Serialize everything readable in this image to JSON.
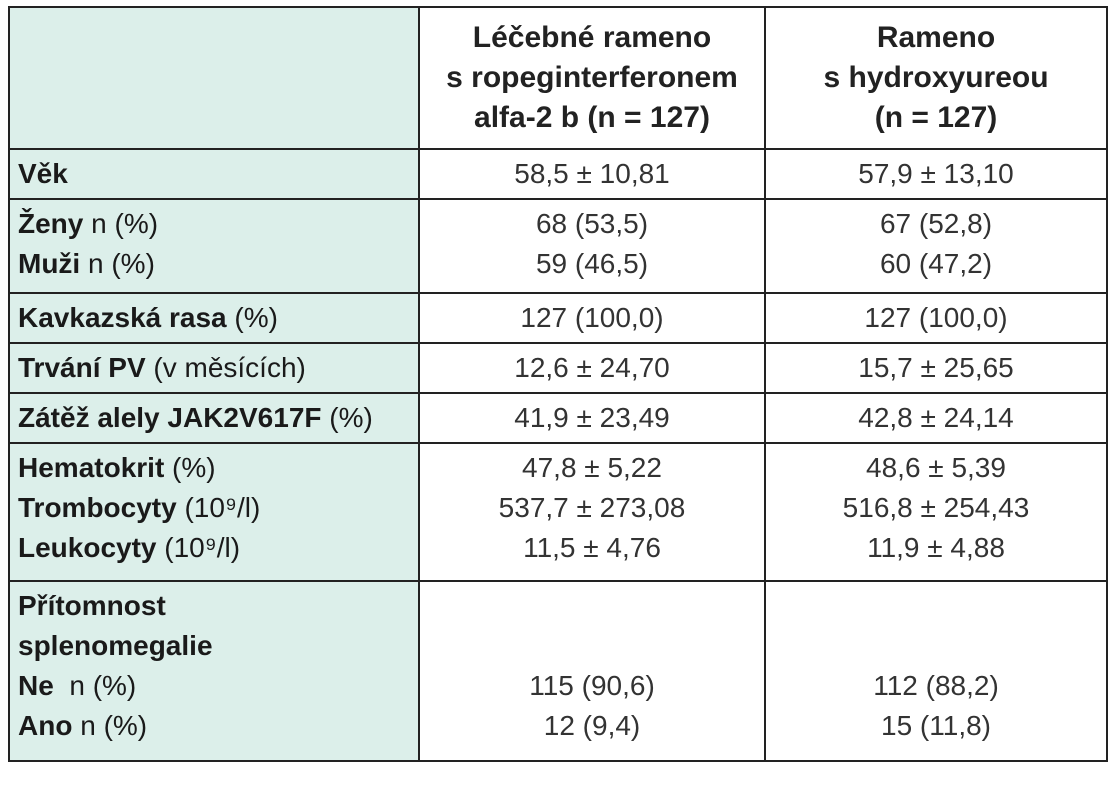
{
  "header": {
    "col1": [
      "Léčebné rameno",
      "s ropeginterferonem",
      "alfa-2 b (n = 127)"
    ],
    "col2": [
      "Rameno",
      "s hydroxyureou",
      "(n = 127)"
    ]
  },
  "rows": {
    "age": {
      "label": "Věk",
      "v1": "58,5 ± 10,81",
      "v2": "57,9 ± 13,10"
    },
    "women": {
      "label_bold": "Ženy",
      "label_rest": " n (%)",
      "v1": "68 (53,5)",
      "v2": "67 (52,8)"
    },
    "men": {
      "label_bold": "Muži",
      "label_rest": " n (%)",
      "v1": "59 (46,5)",
      "v2": "60 (47,2)"
    },
    "caucasian": {
      "label_bold": "Kavkazská rasa",
      "label_rest": " (%)",
      "v1": "127 (100,0)",
      "v2": "127 (100,0)"
    },
    "duration": {
      "label_bold": "Trvání PV",
      "label_rest": " (v měsících)",
      "v1": "12,6 ± 24,70",
      "v2": "15,7 ± 25,65"
    },
    "allele": {
      "label_bold": "Zátěž alely JAK2V617F",
      "label_rest": " (%)",
      "v1": "41,9 ± 23,49",
      "v2": "42,8 ± 24,14"
    },
    "hematocrit": {
      "label_bold": "Hematokrit",
      "label_rest": " (%)",
      "v1": "47,8 ± 5,22",
      "v2": "48,6 ± 5,39"
    },
    "platelets": {
      "label_bold": "Trombocyty",
      "label_rest": " (10⁹/l)",
      "v1": "537,7 ± 273,08",
      "v2": "516,8 ± 254,43"
    },
    "leukocytes": {
      "label_bold": "Leukocyty",
      "label_rest": " (10⁹/l)",
      "v1": "11,5 ± 4,76",
      "v2": "11,9 ± 4,88"
    },
    "spleen": {
      "title1": "Přítomnost",
      "title2": "splenomegalie",
      "no_bold": "Ne",
      "no_rest": "  n (%)",
      "yes_bold": "Ano",
      "yes_rest": " n (%)",
      "no_v1": "115 (90,6)",
      "no_v2": "112 (88,2)",
      "yes_v1": "12 (9,4)",
      "yes_v2": "15 (11,8)"
    }
  }
}
